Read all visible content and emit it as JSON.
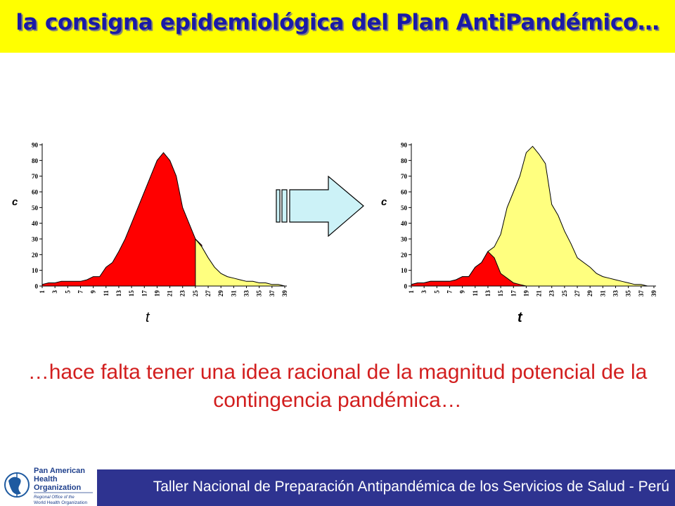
{
  "title": "la consigna epidemiológica del Plan AntiPandémico…",
  "message": "…hace falta tener una idea racional de la magnitud potencial de la contingencia pandémica…",
  "footer": "Taller Nacional de Preparación Antipandémica de los Servicios de Salud - Perú",
  "logo": {
    "line1": "Pan American",
    "line2": "Health",
    "line3": "Organization",
    "sub1": "Regional Office of the",
    "sub2": "World Health Organization"
  },
  "colors": {
    "title_bar": "#ffff00",
    "title_text": "#1a1aa6",
    "message_text": "#d21e1e",
    "footer_bar": "#2e3390",
    "red_area": "#ff0000",
    "yellow_area": "#ffff7f",
    "arrow_fill": "#ccf2f7"
  },
  "arrow": {
    "icon": "right-arrow-icon"
  },
  "chart_data": [
    {
      "type": "area",
      "xlabel": "t",
      "ylabel": "c",
      "ylim": [
        0,
        90
      ],
      "yticks": [
        0,
        10,
        20,
        30,
        40,
        50,
        60,
        70,
        80,
        90
      ],
      "xticks": [
        1,
        3,
        5,
        7,
        9,
        11,
        13,
        15,
        17,
        19,
        21,
        23,
        25,
        27,
        29,
        31,
        33,
        35,
        37,
        39
      ],
      "series": [
        {
          "color": "red",
          "x": [
            1,
            2,
            3,
            4,
            5,
            6,
            7,
            8,
            9,
            10,
            11,
            12,
            13,
            14,
            15,
            16,
            17,
            18,
            19,
            20,
            21,
            22,
            23,
            24,
            25,
            26
          ],
          "values": [
            1,
            2,
            2,
            3,
            3,
            3,
            3,
            4,
            6,
            6,
            12,
            15,
            22,
            30,
            40,
            50,
            60,
            70,
            80,
            85,
            80,
            70,
            50,
            40,
            30,
            26
          ]
        },
        {
          "color": "yellow",
          "x": [
            25,
            26,
            27,
            28,
            29,
            30,
            31,
            32,
            33,
            34,
            35,
            36,
            37,
            38,
            39
          ],
          "values": [
            30,
            25,
            18,
            12,
            8,
            6,
            5,
            4,
            3,
            3,
            2,
            2,
            1,
            1,
            0
          ]
        }
      ]
    },
    {
      "type": "area",
      "xlabel": "t",
      "ylabel": "c",
      "ylim": [
        0,
        90
      ],
      "yticks": [
        0,
        10,
        20,
        30,
        40,
        50,
        60,
        70,
        80,
        90
      ],
      "xticks": [
        1,
        3,
        5,
        7,
        9,
        11,
        13,
        15,
        17,
        19,
        21,
        23,
        25,
        27,
        29,
        31,
        33,
        35,
        37,
        39
      ],
      "series": [
        {
          "color": "yellow",
          "x": [
            1,
            2,
            3,
            4,
            5,
            6,
            7,
            8,
            9,
            10,
            11,
            12,
            13,
            14,
            15,
            16,
            17,
            18,
            19,
            20,
            21,
            22,
            23,
            24,
            25,
            26,
            27,
            28,
            29,
            30,
            31,
            32,
            33,
            34,
            35,
            36,
            37,
            38,
            39
          ],
          "values": [
            1,
            2,
            2,
            3,
            3,
            3,
            3,
            4,
            6,
            6,
            12,
            15,
            22,
            25,
            33,
            50,
            60,
            70,
            85,
            89,
            84,
            78,
            52,
            45,
            35,
            27,
            18,
            15,
            12,
            8,
            6,
            5,
            4,
            3,
            2,
            1,
            1,
            0,
            0
          ]
        },
        {
          "color": "red",
          "x": [
            1,
            2,
            3,
            4,
            5,
            6,
            7,
            8,
            9,
            10,
            11,
            12,
            13,
            14,
            15,
            16,
            17,
            18,
            19
          ],
          "values": [
            1,
            2,
            2,
            3,
            3,
            3,
            3,
            4,
            6,
            6,
            12,
            15,
            22,
            18,
            8,
            5,
            2,
            1,
            0
          ]
        }
      ]
    }
  ]
}
